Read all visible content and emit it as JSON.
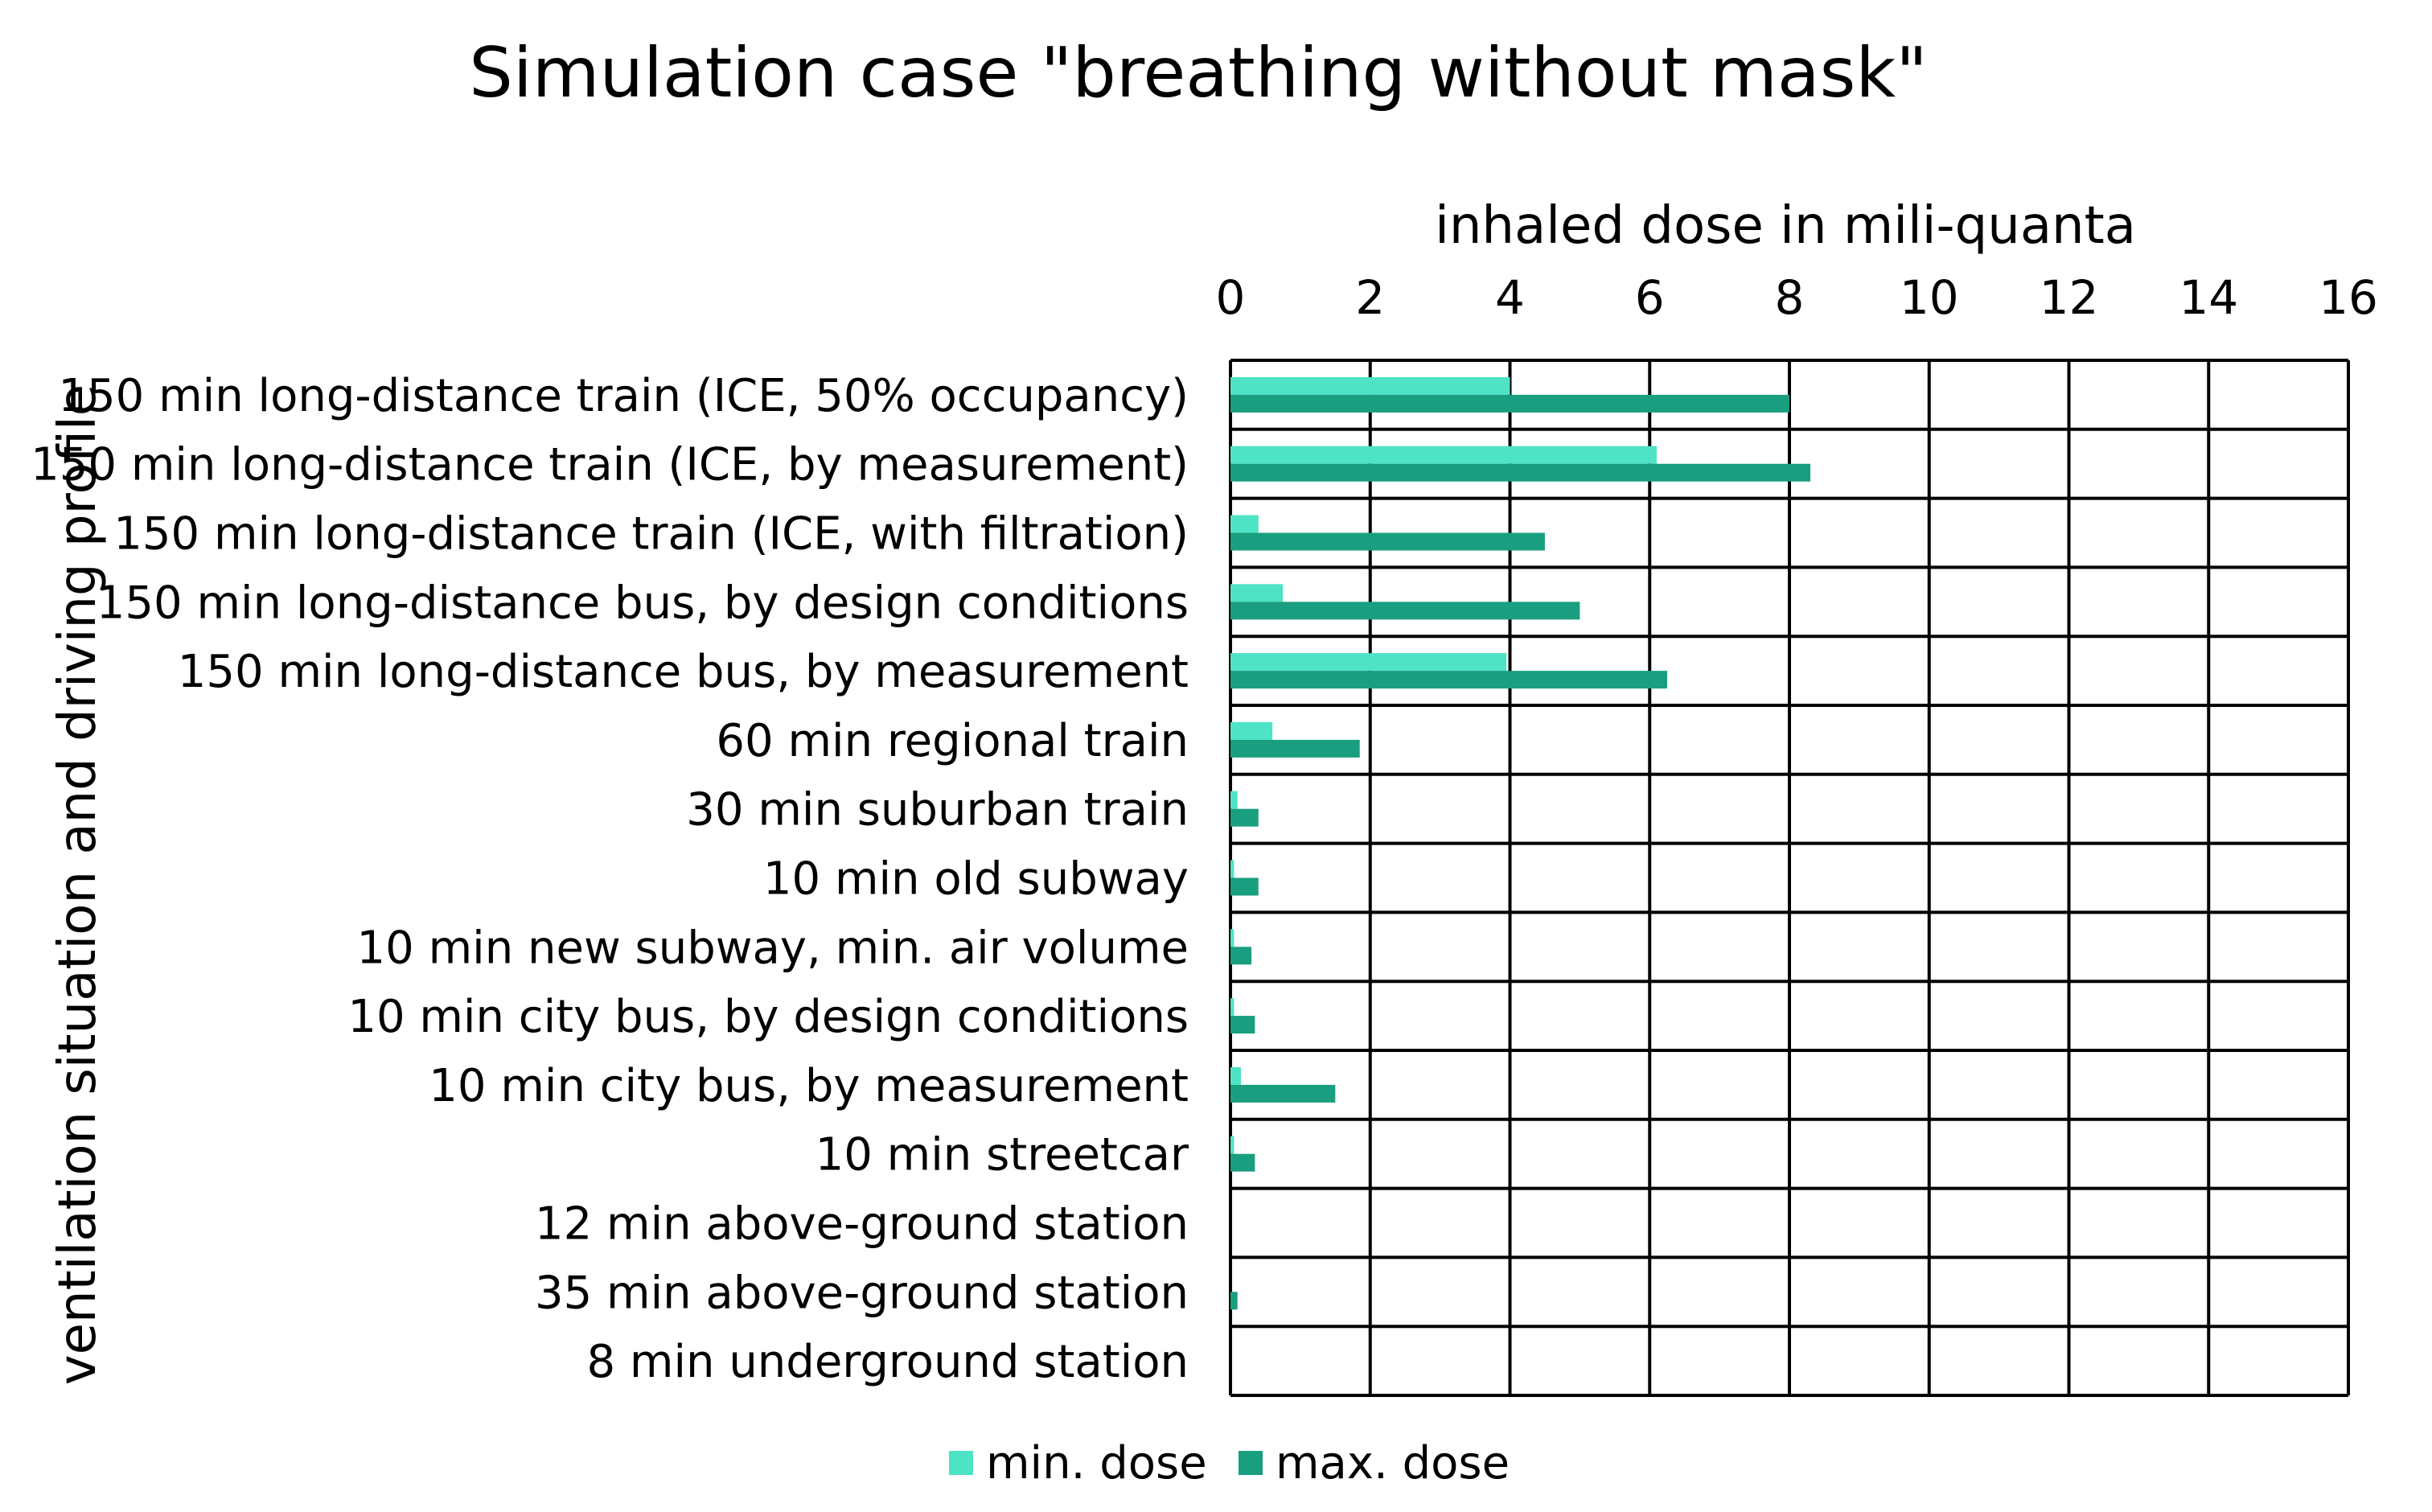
{
  "chart_data": {
    "type": "bar",
    "orientation": "horizontal",
    "title": "Simulation case \"breathing without mask\"",
    "xlabel": "inhaled dose in mili-quanta",
    "ylabel": "ventilation situation and driving profile",
    "xlim": [
      0,
      16
    ],
    "xticks": [
      "0",
      "2",
      "4",
      "6",
      "8",
      "10",
      "12",
      "14",
      "16"
    ],
    "grid": true,
    "x_axis_position": "top",
    "legend_position": "bottom",
    "categories": [
      "150 min long-distance train (ICE, 50% occupancy)",
      "150 min long-distance train (ICE, by measurement)",
      "150 min long-distance train (ICE, with filtration)",
      "150 min long-distance bus, by design conditions",
      "150 min long-distance bus, by measurement",
      "60 min regional train",
      "30 min suburban train",
      "10 min old subway",
      "10 min new subway,  min. air volume",
      "10 min city bus, by design conditions",
      "10 min city bus, by measurement",
      "10 min streetcar",
      "12 min above-ground station",
      "35 min above-ground station",
      "8 min underground station"
    ],
    "series": [
      {
        "name": "min. dose",
        "color": "#4de3c4",
        "values": [
          4.0,
          6.1,
          0.4,
          0.75,
          3.95,
          0.6,
          0.1,
          0.05,
          0.05,
          0.05,
          0.15,
          0.05,
          0.0,
          0.0,
          0.0
        ]
      },
      {
        "name": "max. dose",
        "color": "#1a9e80",
        "values": [
          8.0,
          8.3,
          4.5,
          5.0,
          6.25,
          1.85,
          0.4,
          0.4,
          0.3,
          0.35,
          1.5,
          0.35,
          0.0,
          0.1,
          0.0
        ]
      }
    ]
  }
}
